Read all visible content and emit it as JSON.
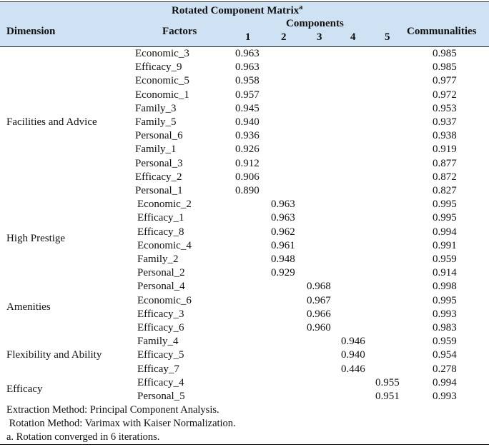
{
  "table": {
    "title": "Rotated Component Matrix",
    "title_sup": "a",
    "headers": {
      "dimension": "Dimension",
      "factors": "Factors",
      "components": "Components",
      "component_numbers": [
        "1",
        "2",
        "3",
        "4",
        "5"
      ],
      "communalities": "Communalities"
    },
    "rows": [
      {
        "factor": "Economic_3",
        "comp": 1,
        "loading": "0.963",
        "communality": "0.985"
      },
      {
        "factor": "Efficacy_9",
        "comp": 1,
        "loading": "0.963",
        "communality": "0.985"
      },
      {
        "factor": "Economic_5",
        "comp": 1,
        "loading": "0.958",
        "communality": "0.977"
      },
      {
        "factor": "Economic_1",
        "comp": 1,
        "loading": "0.957",
        "communality": "0.972"
      },
      {
        "factor": "Family_3",
        "comp": 1,
        "loading": "0.945",
        "communality": "0.953"
      },
      {
        "factor": "Family_5",
        "comp": 1,
        "loading": "0.940",
        "communality": "0.937"
      },
      {
        "factor": "Personal_6",
        "comp": 1,
        "loading": "0.936",
        "communality": "0.938"
      },
      {
        "factor": "Family_1",
        "comp": 1,
        "loading": "0.926",
        "communality": "0.919"
      },
      {
        "factor": "Personal_3",
        "comp": 1,
        "loading": "0.912",
        "communality": "0.877"
      },
      {
        "factor": "Efficacy_2",
        "comp": 1,
        "loading": "0.906",
        "communality": "0.872"
      },
      {
        "factor": "Personal_1",
        "comp": 1,
        "loading": "0.890",
        "communality": "0.827"
      },
      {
        "factor": "Economic_2",
        "comp": 2,
        "loading": "0.963",
        "communality": "0.995"
      },
      {
        "factor": "Efficacy_1",
        "comp": 2,
        "loading": "0.963",
        "communality": "0.995"
      },
      {
        "factor": "Efficacy_8",
        "comp": 2,
        "loading": "0.962",
        "communality": "0.994"
      },
      {
        "factor": "Economic_4",
        "comp": 2,
        "loading": "0.961",
        "communality": "0.991"
      },
      {
        "factor": "Family_2",
        "comp": 2,
        "loading": "0.948",
        "communality": "0.959"
      },
      {
        "factor": "Personal_2",
        "comp": 2,
        "loading": "0.929",
        "communality": "0.914"
      },
      {
        "factor": "Personal_4",
        "comp": 3,
        "loading": "0.968",
        "communality": "0.998"
      },
      {
        "factor": "Economic_6",
        "comp": 3,
        "loading": "0.967",
        "communality": "0.995"
      },
      {
        "factor": "Efficacy_3",
        "comp": 3,
        "loading": "0.966",
        "communality": "0.993"
      },
      {
        "factor": "Efficacy_6",
        "comp": 3,
        "loading": "0.960",
        "communality": "0.983"
      },
      {
        "factor": "Family_4",
        "comp": 4,
        "loading": "0.946",
        "communality": "0.959"
      },
      {
        "factor": "Efficacy_5",
        "comp": 4,
        "loading": "0.940",
        "communality": "0.954"
      },
      {
        "factor": "Efficay_7",
        "comp": 4,
        "loading": "0.446",
        "communality": "0.278"
      },
      {
        "factor": "Efficacy_4",
        "comp": 5,
        "loading": "0.955",
        "communality": "0.994"
      },
      {
        "factor": "Personal_5",
        "comp": 5,
        "loading": "0.951",
        "communality": "0.993"
      }
    ],
    "dimensions": [
      {
        "label": "Facilities and Advice",
        "first_row": 0,
        "last_row": 10
      },
      {
        "label": "High Prestige",
        "first_row": 11,
        "last_row": 16
      },
      {
        "label": "Amenities",
        "first_row": 17,
        "last_row": 20
      },
      {
        "label": "Flexibility and Ability",
        "first_row": 21,
        "last_row": 23
      },
      {
        "label": "Efficacy",
        "first_row": 24,
        "last_row": 25
      }
    ],
    "footnotes": [
      "Extraction Method: Principal Component Analysis.",
      " Rotation Method: Varimax with Kaiser Normalization.",
      "a. Rotation converged in 6 iterations."
    ]
  }
}
